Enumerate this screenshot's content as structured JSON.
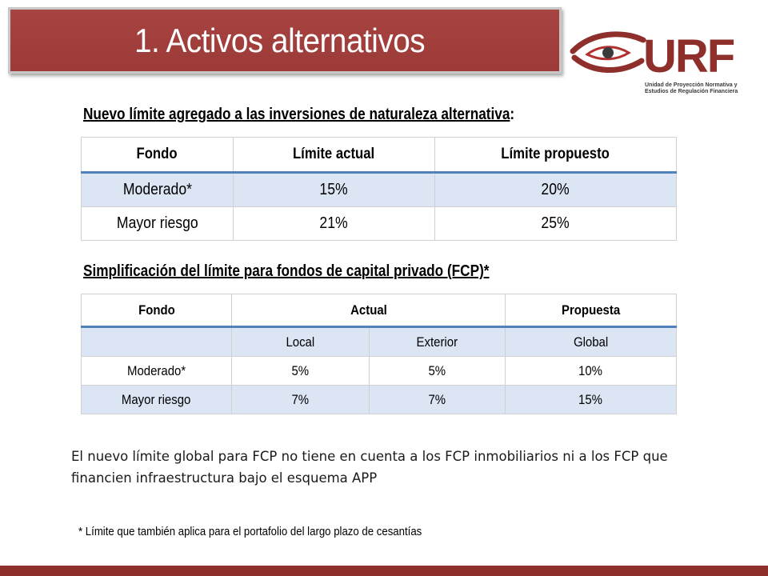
{
  "slide": {
    "title": "1. Activos alternativos",
    "logo": {
      "text": "URF",
      "subtitle_line1": "Unidad de Proyección Normativa y",
      "subtitle_line2": "Estudios de Regulación Financiera",
      "colors": {
        "brand_red": "#8e2f2c",
        "eye_red": "#b0312f",
        "dark": "#3a3a3a"
      }
    },
    "heading1": {
      "underlined": "Nuevo límite agregado a las inversiones de naturaleza alternativa",
      "suffix": ":"
    },
    "table1": {
      "headers": [
        "Fondo",
        "Límite actual",
        "Límite propuesto"
      ],
      "rows": [
        [
          "Moderado*",
          "15%",
          "20%"
        ],
        [
          "Mayor riesgo",
          "21%",
          "25%"
        ]
      ]
    },
    "heading2": "Simplificación del límite para fondos de capital privado (FCP)*",
    "table2": {
      "headers": [
        "Fondo",
        "Actual",
        "Propuesta"
      ],
      "subheaders": [
        "",
        "Local",
        "Exterior",
        "Global"
      ],
      "rows": [
        [
          "Moderado*",
          "5%",
          "5%",
          "10%"
        ],
        [
          "Mayor riesgo",
          "7%",
          "7%",
          "15%"
        ]
      ]
    },
    "note": "El nuevo límite global para FCP no tiene en cuenta a los FCP inmobiliarios ni a los FCP que financien infraestructura bajo el esquema APP",
    "footnote": "*  Límite que también aplica para el portafolio del largo plazo de cesantías",
    "colors": {
      "title_bg": "#a13f3d",
      "accent_blue": "#4f81bd",
      "row_blue": "#dbe5f3"
    }
  }
}
